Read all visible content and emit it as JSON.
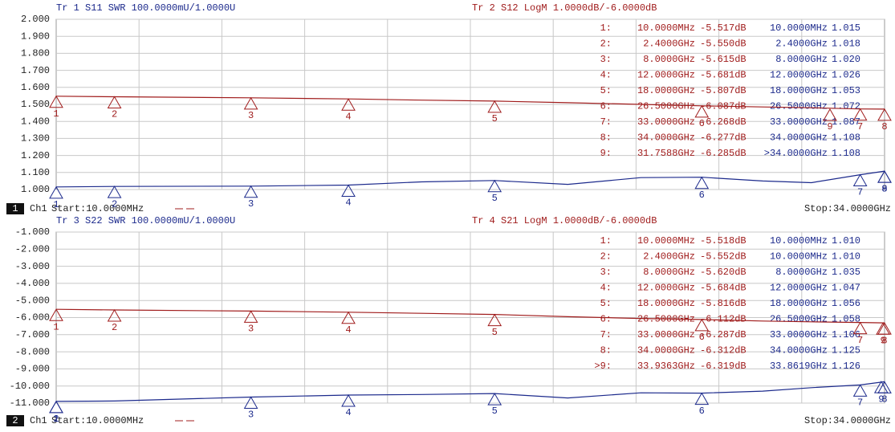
{
  "chart_data": [
    {
      "type": "line",
      "channel": "1",
      "ch_label": "Ch1",
      "start": "Start:10.0000MHz",
      "stop": "Stop:34.0000GHz",
      "xlim": [
        0.01,
        34
      ],
      "ylim": [
        1,
        2
      ],
      "y2lim": [
        -11,
        -1
      ],
      "grid": true,
      "yticks": [
        {
          "value": 1,
          "label": "1.000"
        },
        {
          "value": 1.1,
          "label": "1.100"
        },
        {
          "value": 1.2,
          "label": "1.200"
        },
        {
          "value": 1.3,
          "label": "1.300"
        },
        {
          "value": 1.4,
          "label": "1.400"
        },
        {
          "value": 1.5,
          "label": "1.500"
        },
        {
          "value": 1.6,
          "label": "1.600"
        },
        {
          "value": 1.7,
          "label": "1.700"
        },
        {
          "value": 1.8,
          "label": "1.800"
        },
        {
          "value": 1.9,
          "label": "1.900"
        },
        {
          "value": 2,
          "label": "2.000"
        }
      ],
      "x": [
        0.01,
        2.4,
        8,
        12,
        15,
        18,
        21,
        24,
        26.5,
        29,
        31,
        33,
        34
      ],
      "series": [
        {
          "name": "Tr 1  S11 SWR 100.0000mU/1.0000U",
          "color": "#1c2a8c",
          "values": [
            1.015,
            1.018,
            1.02,
            1.026,
            1.045,
            1.053,
            1.03,
            1.07,
            1.072,
            1.05,
            1.04,
            1.087,
            1.108
          ],
          "markers": [
            {
              "label": "1",
              "x": 0.01,
              "value": 1.015
            },
            {
              "label": "2",
              "x": 2.4,
              "value": 1.018
            },
            {
              "label": "3",
              "x": 8,
              "value": 1.02
            },
            {
              "label": "4",
              "x": 12,
              "value": 1.026
            },
            {
              "label": "5",
              "x": 18,
              "value": 1.053
            },
            {
              "label": "6",
              "x": 26.5,
              "value": 1.072
            },
            {
              "label": "7",
              "x": 33,
              "value": 1.087
            },
            {
              "label": "8",
              "x": 34,
              "value": 1.108
            },
            {
              "label": "9",
              "x": 34,
              "value": 1.108
            }
          ],
          "table": [
            [
              "10.0000MHz",
              "1.015"
            ],
            [
              "2.4000GHz",
              "1.018"
            ],
            [
              "8.0000GHz",
              "1.020"
            ],
            [
              "12.0000GHz",
              "1.026"
            ],
            [
              "18.0000GHz",
              "1.053"
            ],
            [
              "26.5000GHz",
              "1.072"
            ],
            [
              "33.0000GHz",
              "1.087"
            ],
            [
              "34.0000GHz",
              "1.108"
            ],
            [
              ">34.0000GHz",
              "1.108"
            ]
          ]
        },
        {
          "name": "Tr 2  S12 LogM 1.0000dB/-6.0000dB",
          "color": "#a01c1c",
          "axis": "y2",
          "values": [
            -5.517,
            -5.55,
            -5.615,
            -5.681,
            -5.75,
            -5.807,
            -5.9,
            -6.0,
            -6.087,
            -6.15,
            -6.2,
            -6.268,
            -6.277
          ],
          "markers": [
            {
              "label": "1",
              "x": 0.01,
              "value": -5.517
            },
            {
              "label": "2",
              "x": 2.4,
              "value": -5.55
            },
            {
              "label": "3",
              "x": 8,
              "value": -5.615
            },
            {
              "label": "4",
              "x": 12,
              "value": -5.681
            },
            {
              "label": "5",
              "x": 18,
              "value": -5.807
            },
            {
              "label": "6",
              "x": 26.5,
              "value": -6.087
            },
            {
              "label": "7",
              "x": 33,
              "value": -6.268
            },
            {
              "label": "8",
              "x": 34,
              "value": -6.277
            },
            {
              "label": "9",
              "x": 31.7588,
              "value": -6.285
            }
          ],
          "table": [
            [
              "1:",
              "10.0000MHz",
              "-5.517dB"
            ],
            [
              "2:",
              "2.4000GHz",
              "-5.550dB"
            ],
            [
              "3:",
              "8.0000GHz",
              "-5.615dB"
            ],
            [
              "4:",
              "12.0000GHz",
              "-5.681dB"
            ],
            [
              "5:",
              "18.0000GHz",
              "-5.807dB"
            ],
            [
              "6:",
              "26.5000GHz",
              "-6.087dB"
            ],
            [
              "7:",
              "33.0000GHz",
              "-6.268dB"
            ],
            [
              "8:",
              "34.0000GHz",
              "-6.277dB"
            ],
            [
              "9:",
              "31.7588GHz",
              "-6.285dB"
            ]
          ]
        }
      ]
    },
    {
      "type": "line",
      "channel": "2",
      "ch_label": "Ch1",
      "start": "Start:10.0000MHz",
      "stop": "Stop:34.0000GHz",
      "xlim": [
        0.01,
        34
      ],
      "ylim": [
        -11,
        -1
      ],
      "y2lim": [
        1,
        2
      ],
      "grid": true,
      "yticks": [
        {
          "value": -11,
          "label": "-11.000"
        },
        {
          "value": -10,
          "label": "-10.000"
        },
        {
          "value": -9,
          "label": "-9.000"
        },
        {
          "value": -8,
          "label": "-8.000"
        },
        {
          "value": -7,
          "label": "-7.000"
        },
        {
          "value": -6,
          "label": "-6.000"
        },
        {
          "value": -5,
          "label": "-5.000"
        },
        {
          "value": -4,
          "label": "-4.000"
        },
        {
          "value": -3,
          "label": "-3.000"
        },
        {
          "value": -2,
          "label": "-2.000"
        },
        {
          "value": -1,
          "label": "-1.000"
        }
      ],
      "x": [
        0.01,
        2.4,
        8,
        12,
        15,
        18,
        21,
        24,
        26.5,
        29,
        31,
        33,
        34
      ],
      "series": [
        {
          "name": "Tr 3  S22 SWR 100.0000mU/1.0000U",
          "color": "#1c2a8c",
          "axis": "y2",
          "values": [
            1.01,
            1.012,
            1.035,
            1.047,
            1.05,
            1.056,
            1.03,
            1.06,
            1.058,
            1.07,
            1.09,
            1.106,
            1.125
          ],
          "markers": [
            {
              "label": "1",
              "x": 0.01,
              "value": 1.01
            },
            {
              "label": "2",
              "x": 0.01,
              "value": 1.01
            },
            {
              "label": "3",
              "x": 8,
              "value": 1.035
            },
            {
              "label": "4",
              "x": 12,
              "value": 1.047
            },
            {
              "label": "5",
              "x": 18,
              "value": 1.056
            },
            {
              "label": "6",
              "x": 26.5,
              "value": 1.058
            },
            {
              "label": "7",
              "x": 33,
              "value": 1.106
            },
            {
              "label": "8",
              "x": 34,
              "value": 1.125
            },
            {
              "label": "9",
              "x": 33.8619,
              "value": 1.126
            }
          ],
          "table": [
            [
              "10.0000MHz",
              "1.010"
            ],
            [
              "10.0000MHz",
              "1.010"
            ],
            [
              "8.0000GHz",
              "1.035"
            ],
            [
              "12.0000GHz",
              "1.047"
            ],
            [
              "18.0000GHz",
              "1.056"
            ],
            [
              "26.5000GHz",
              "1.058"
            ],
            [
              "33.0000GHz",
              "1.106"
            ],
            [
              "34.0000GHz",
              "1.125"
            ],
            [
              "33.8619GHz",
              "1.126"
            ]
          ]
        },
        {
          "name": "Tr 4  S21 LogM 1.0000dB/-6.0000dB",
          "color": "#a01c1c",
          "values": [
            -5.518,
            -5.552,
            -5.62,
            -5.684,
            -5.75,
            -5.816,
            -5.95,
            -6.05,
            -6.112,
            -6.2,
            -6.25,
            -6.287,
            -6.312
          ],
          "markers": [
            {
              "label": "1",
              "x": 0.01,
              "value": -5.518
            },
            {
              "label": "2",
              "x": 2.4,
              "value": -5.552
            },
            {
              "label": "3",
              "x": 8,
              "value": -5.62
            },
            {
              "label": "4",
              "x": 12,
              "value": -5.684
            },
            {
              "label": "5",
              "x": 18,
              "value": -5.816
            },
            {
              "label": "6",
              "x": 26.5,
              "value": -6.112
            },
            {
              "label": "7",
              "x": 33,
              "value": -6.287
            },
            {
              "label": "8",
              "x": 34,
              "value": -6.312
            },
            {
              "label": "9",
              "x": 33.9363,
              "value": -6.319
            }
          ],
          "table": [
            [
              "1:",
              "10.0000MHz",
              "-5.518dB"
            ],
            [
              "2:",
              "2.4000GHz",
              "-5.552dB"
            ],
            [
              "3:",
              "8.0000GHz",
              "-5.620dB"
            ],
            [
              "4:",
              "12.0000GHz",
              "-5.684dB"
            ],
            [
              "5:",
              "18.0000GHz",
              "-5.816dB"
            ],
            [
              "6:",
              "26.5000GHz",
              "-6.112dB"
            ],
            [
              "7:",
              "33.0000GHz",
              "-6.287dB"
            ],
            [
              "8:",
              "34.0000GHz",
              "-6.312dB"
            ],
            [
              ">9:",
              "33.9363GHz",
              "-6.319dB"
            ]
          ]
        }
      ]
    }
  ]
}
